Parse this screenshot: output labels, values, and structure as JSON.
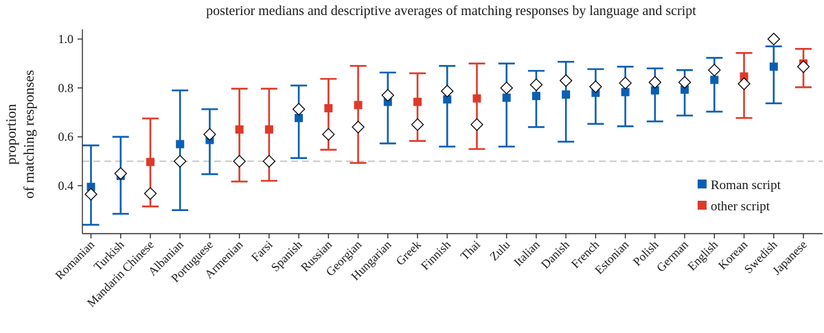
{
  "chart_data": {
    "type": "error-bar",
    "title": "posterior medians and descriptive averages of matching responses by language and script",
    "ylabel_lines": [
      "proportion",
      "of matching responses"
    ],
    "xlabel": "",
    "ylim": [
      0.2,
      1.04
    ],
    "yticks": [
      0.4,
      0.6,
      0.8,
      1.0
    ],
    "ytick_labels": [
      "0.4",
      "0.6",
      "0.8",
      "1.0"
    ],
    "reference_line": 0.5,
    "colors": {
      "roman": "#0b5fb3",
      "other": "#de3a2a",
      "axis": "#2b2b2b",
      "reference": "#c8c8c8",
      "average_marker_fill": "#ffffff",
      "average_marker_stroke": "#000000"
    },
    "legend": {
      "position": "bottom-right",
      "items": [
        {
          "label": "Roman script",
          "script": "roman"
        },
        {
          "label": "other script",
          "script": "other"
        }
      ]
    },
    "series": [
      {
        "language": "Romanian",
        "script": "roman",
        "median": 0.395,
        "lower": 0.24,
        "upper": 0.565,
        "average": 0.365
      },
      {
        "language": "Turkish",
        "script": "roman",
        "median": 0.44,
        "lower": 0.285,
        "upper": 0.6,
        "average": 0.45
      },
      {
        "language": "Mandarin Chinese",
        "script": "other",
        "median": 0.497,
        "lower": 0.315,
        "upper": 0.675,
        "average": 0.368
      },
      {
        "language": "Albanian",
        "script": "roman",
        "median": 0.57,
        "lower": 0.3,
        "upper": 0.79,
        "average": 0.5
      },
      {
        "language": "Portuguese",
        "script": "roman",
        "median": 0.587,
        "lower": 0.447,
        "upper": 0.713,
        "average": 0.61
      },
      {
        "language": "Armenian",
        "script": "other",
        "median": 0.63,
        "lower": 0.417,
        "upper": 0.797,
        "average": 0.5
      },
      {
        "language": "Farsi",
        "script": "other",
        "median": 0.63,
        "lower": 0.42,
        "upper": 0.797,
        "average": 0.5
      },
      {
        "language": "Spanish",
        "script": "roman",
        "median": 0.677,
        "lower": 0.513,
        "upper": 0.81,
        "average": 0.713
      },
      {
        "language": "Russian",
        "script": "other",
        "median": 0.717,
        "lower": 0.547,
        "upper": 0.837,
        "average": 0.61
      },
      {
        "language": "Georgian",
        "script": "other",
        "median": 0.73,
        "lower": 0.493,
        "upper": 0.89,
        "average": 0.64
      },
      {
        "language": "Hungarian",
        "script": "roman",
        "median": 0.743,
        "lower": 0.573,
        "upper": 0.863,
        "average": 0.77
      },
      {
        "language": "Greek",
        "script": "other",
        "median": 0.743,
        "lower": 0.583,
        "upper": 0.86,
        "average": 0.65
      },
      {
        "language": "Finnish",
        "script": "roman",
        "median": 0.753,
        "lower": 0.56,
        "upper": 0.89,
        "average": 0.787
      },
      {
        "language": "Thai",
        "script": "other",
        "median": 0.757,
        "lower": 0.55,
        "upper": 0.9,
        "average": 0.65
      },
      {
        "language": "Zulu",
        "script": "roman",
        "median": 0.76,
        "lower": 0.56,
        "upper": 0.9,
        "average": 0.8
      },
      {
        "language": "Italian",
        "script": "roman",
        "median": 0.767,
        "lower": 0.64,
        "upper": 0.87,
        "average": 0.813
      },
      {
        "language": "Danish",
        "script": "roman",
        "median": 0.773,
        "lower": 0.58,
        "upper": 0.907,
        "average": 0.83
      },
      {
        "language": "French",
        "script": "roman",
        "median": 0.78,
        "lower": 0.653,
        "upper": 0.877,
        "average": 0.805
      },
      {
        "language": "Estonian",
        "script": "roman",
        "median": 0.783,
        "lower": 0.643,
        "upper": 0.887,
        "average": 0.82
      },
      {
        "language": "Polish",
        "script": "roman",
        "median": 0.79,
        "lower": 0.663,
        "upper": 0.88,
        "average": 0.823
      },
      {
        "language": "German",
        "script": "roman",
        "median": 0.793,
        "lower": 0.687,
        "upper": 0.873,
        "average": 0.823
      },
      {
        "language": "English",
        "script": "roman",
        "median": 0.833,
        "lower": 0.703,
        "upper": 0.923,
        "average": 0.873
      },
      {
        "language": "Korean",
        "script": "other",
        "median": 0.847,
        "lower": 0.677,
        "upper": 0.943,
        "average": 0.817
      },
      {
        "language": "Swedish",
        "script": "roman",
        "median": 0.887,
        "lower": 0.737,
        "upper": 0.97,
        "average": 1.0
      },
      {
        "language": "Japanese",
        "script": "other",
        "median": 0.9,
        "lower": 0.803,
        "upper": 0.96,
        "average": 0.887
      }
    ]
  }
}
